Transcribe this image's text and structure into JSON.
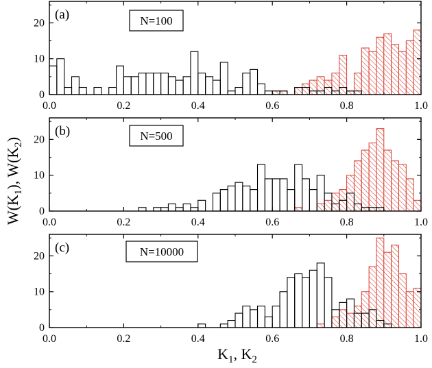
{
  "chart_data": [
    {
      "type": "bar",
      "panel": "(a)",
      "annotation": "N=100",
      "xlim": [
        0.0,
        1.0
      ],
      "ylim": [
        0,
        26
      ],
      "xticks": [
        "0.0",
        "0.2",
        "0.4",
        "0.6",
        "0.8",
        "1.0"
      ],
      "yticks": [
        "0",
        "10",
        "20"
      ],
      "bin_width": 0.02,
      "series": [
        {
          "name": "W(K1)",
          "color": "#000000",
          "x": [
            0.0,
            0.02,
            0.04,
            0.06,
            0.08,
            0.12,
            0.16,
            0.18,
            0.2,
            0.22,
            0.24,
            0.26,
            0.28,
            0.3,
            0.32,
            0.34,
            0.36,
            0.38,
            0.4,
            0.42,
            0.44,
            0.46,
            0.48,
            0.5,
            0.52,
            0.54,
            0.56,
            0.58,
            0.6,
            0.62,
            0.66,
            0.68,
            0.7,
            0.72,
            0.74,
            0.76,
            0.78,
            0.8,
            0.82
          ],
          "values": [
            8,
            10,
            2,
            5,
            2,
            2,
            2,
            8,
            5,
            5,
            6,
            6,
            6,
            6,
            5,
            4,
            5,
            12,
            6,
            5,
            4,
            9,
            1,
            2,
            6,
            7,
            3,
            1,
            1,
            1,
            2,
            2,
            1,
            1,
            2,
            1,
            2,
            1,
            1
          ]
        },
        {
          "name": "W(K2)",
          "color": "#d93a2e",
          "x": [
            0.6,
            0.62,
            0.66,
            0.68,
            0.7,
            0.72,
            0.74,
            0.76,
            0.78,
            0.8,
            0.82,
            0.84,
            0.86,
            0.88,
            0.9,
            0.92,
            0.94,
            0.96,
            0.98
          ],
          "values": [
            1,
            1,
            2,
            3,
            4,
            5,
            4,
            6,
            11,
            1,
            6,
            13,
            12,
            16,
            17,
            14,
            12,
            15,
            18
          ]
        }
      ]
    },
    {
      "type": "bar",
      "panel": "(b)",
      "annotation": "N=500",
      "xlim": [
        0.0,
        1.0
      ],
      "ylim": [
        0,
        26
      ],
      "xticks": [
        "0.0",
        "0.2",
        "0.4",
        "0.6",
        "0.8",
        "1.0"
      ],
      "yticks": [
        "0",
        "10",
        "20"
      ],
      "bin_width": 0.02,
      "series": [
        {
          "name": "W(K1)",
          "color": "#000000",
          "x": [
            0.24,
            0.28,
            0.3,
            0.32,
            0.34,
            0.36,
            0.38,
            0.4,
            0.44,
            0.46,
            0.48,
            0.5,
            0.52,
            0.54,
            0.56,
            0.58,
            0.6,
            0.62,
            0.64,
            0.66,
            0.68,
            0.7,
            0.72,
            0.74,
            0.76,
            0.78,
            0.8,
            0.82,
            0.84,
            0.86,
            0.88
          ],
          "values": [
            1,
            1,
            1,
            2,
            1,
            2,
            1,
            3,
            5,
            6,
            7,
            8,
            7,
            6,
            13,
            9,
            9,
            9,
            6,
            13,
            9,
            6,
            10,
            5,
            2,
            3,
            5,
            2,
            1,
            1,
            1
          ]
        },
        {
          "name": "W(K2)",
          "color": "#d93a2e",
          "x": [
            0.66,
            0.72,
            0.74,
            0.76,
            0.78,
            0.8,
            0.82,
            0.84,
            0.86,
            0.88,
            0.9,
            0.92,
            0.94,
            0.96,
            0.98
          ],
          "values": [
            1,
            2,
            3,
            5,
            6,
            10,
            14,
            17,
            19,
            23,
            17,
            14,
            13,
            9,
            3
          ]
        }
      ]
    },
    {
      "type": "bar",
      "panel": "(c)",
      "annotation": "N=10000",
      "xlim": [
        0.0,
        1.0
      ],
      "ylim": [
        0,
        26
      ],
      "xticks": [
        "0.0",
        "0.2",
        "0.4",
        "0.6",
        "0.8",
        "1.0"
      ],
      "yticks": [
        "0",
        "10",
        "20"
      ],
      "bin_width": 0.02,
      "series": [
        {
          "name": "W(K1)",
          "color": "#000000",
          "x": [
            0.4,
            0.46,
            0.48,
            0.5,
            0.52,
            0.54,
            0.56,
            0.58,
            0.6,
            0.62,
            0.64,
            0.66,
            0.68,
            0.7,
            0.72,
            0.74,
            0.76,
            0.78,
            0.8,
            0.82,
            0.84,
            0.86,
            0.88,
            0.9
          ],
          "values": [
            1,
            1,
            2,
            4,
            6,
            5,
            6,
            3,
            6,
            10,
            14,
            15,
            14,
            16,
            18,
            14,
            5,
            7,
            8,
            4,
            4,
            5,
            2,
            1
          ]
        },
        {
          "name": "W(K2)",
          "color": "#d93a2e",
          "x": [
            0.72,
            0.76,
            0.78,
            0.8,
            0.82,
            0.84,
            0.86,
            0.88,
            0.9,
            0.92,
            0.94,
            0.96,
            0.98
          ],
          "values": [
            1,
            3,
            5,
            4,
            6,
            10,
            17,
            25,
            21,
            23,
            15,
            10,
            11
          ]
        }
      ]
    }
  ],
  "ylabel": {
    "main": "W(K",
    "sub1": "1",
    "mid": "), W(K",
    "sub2": "2",
    "end": ")"
  },
  "xlabel": {
    "main": "K",
    "sub1": "1",
    "mid": ", K",
    "sub2": "2"
  }
}
